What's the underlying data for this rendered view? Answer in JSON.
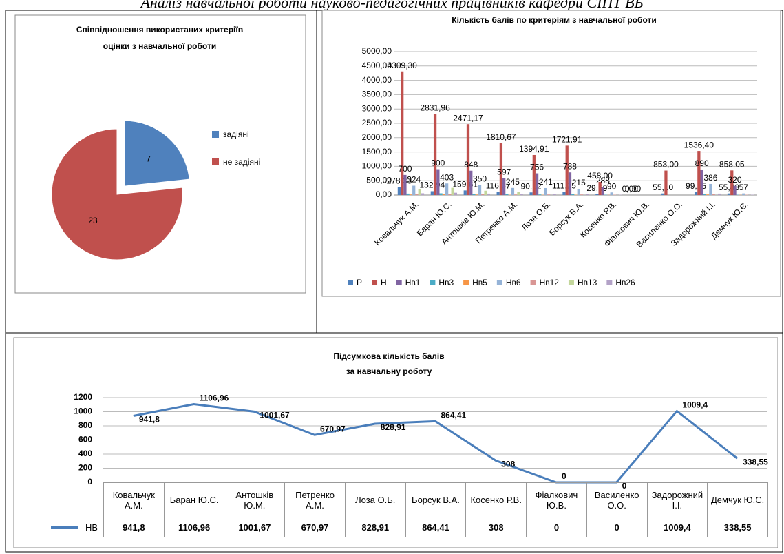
{
  "header": {
    "title": "Аналіз навчальної роботи науково-педагогічних працівників кафедри СІПТ ВБ"
  },
  "chart_data": [
    {
      "type": "pie",
      "title": [
        "Співвідношення використаних критеріїв",
        "оцінки з навчальної роботи"
      ],
      "categories": [
        "задіяні",
        "не задіяні"
      ],
      "values": [
        7,
        23
      ],
      "colors": [
        "#4f81bd",
        "#c0504d"
      ],
      "legend": "right"
    },
    {
      "type": "bar",
      "title": "Кількість балів по критеріям з навчальної роботи",
      "categories": [
        "Ковальчук А.М.",
        "Баран Ю.С.",
        "Антошків Ю.М.",
        "Петренко А.М.",
        "Лоза О.Б.",
        "Борсук В.А.",
        "Косенко Р.В.",
        "Фіалкович Ю.В.",
        "Василенко О.О.",
        "Задорожний І.І.",
        "Демчук Ю.Є."
      ],
      "ylim": [
        0,
        5000
      ],
      "yticks": [
        {
          "value": 0,
          "label": "0,00"
        },
        {
          "value": 500,
          "label": "500,00"
        },
        {
          "value": 1000,
          "label": "1000,00"
        },
        {
          "value": 1500,
          "label": "1500,00"
        },
        {
          "value": 2000,
          "label": "2000,00"
        },
        {
          "value": 2500,
          "label": "2500,00"
        },
        {
          "value": 3000,
          "label": "3000,00"
        },
        {
          "value": 3500,
          "label": "3500,00"
        },
        {
          "value": 4000,
          "label": "4000,00"
        },
        {
          "value": 4500,
          "label": "4500,00"
        },
        {
          "value": 5000,
          "label": "5000,00"
        }
      ],
      "grid": true,
      "legend": "bottom",
      "series": [
        {
          "name": "Р",
          "color": "#4f81bd",
          "values": [
            278.33,
            132.94,
            159.61,
            116.37,
            90.12,
            111.25,
            29.59,
            0,
            55.1,
            99.25,
            55.43
          ],
          "value_labels": [
            "278,33",
            "132,94",
            "159,61",
            "116,37",
            "90,12",
            "111,25",
            "29,59",
            "0,00",
            "55,10",
            "99,25",
            "55,43"
          ]
        },
        {
          "name": "Н",
          "color": "#c0504d",
          "values": [
            4309.3,
            2831.96,
            2471.17,
            1810.67,
            1394.91,
            1721.91,
            458,
            0,
            853,
            1536.4,
            858.05
          ],
          "value_labels": [
            "4309,30",
            "2831,96",
            "2471,17",
            "1810,67",
            "1394,91",
            "1721,91",
            "458,00",
            "0,00",
            "853,00",
            "1536,40",
            "858,05"
          ]
        },
        {
          "name": "Нв1",
          "color": "#8064a2",
          "values": [
            700,
            900,
            848,
            597,
            756,
            788,
            288,
            0,
            0,
            890,
            320
          ],
          "value_labels": [
            "700",
            "900",
            "848",
            "597",
            "756",
            "788",
            "288",
            null,
            null,
            "890",
            "320"
          ]
        },
        {
          "name": "Нв3",
          "color": "#4bacc6",
          "values": [
            50,
            60,
            40,
            30,
            20,
            30,
            10,
            0,
            0,
            40,
            10
          ]
        },
        {
          "name": "Нв5",
          "color": "#f79646",
          "values": [
            20,
            30,
            20,
            10,
            10,
            10,
            5,
            0,
            0,
            20,
            5
          ]
        },
        {
          "name": "Нв6",
          "color": "#95b3d7",
          "values": [
            324,
            403,
            350,
            245,
            241,
            215,
            90,
            0,
            0,
            386,
            57
          ],
          "value_labels": [
            "324",
            "403",
            "350",
            "245",
            "241",
            "215",
            "90",
            null,
            null,
            "386",
            "57"
          ]
        },
        {
          "name": "Нв12",
          "color": "#d99694",
          "values": [
            30,
            40,
            30,
            20,
            20,
            20,
            10,
            0,
            0,
            30,
            10
          ]
        },
        {
          "name": "Нв13",
          "color": "#c3d69b",
          "values": [
            200,
            250,
            150,
            100,
            0,
            0,
            0,
            0,
            0,
            0,
            0
          ]
        },
        {
          "name": "Нв26",
          "color": "#b3a2c7",
          "values": [
            60,
            80,
            50,
            40,
            30,
            30,
            10,
            0,
            0,
            50,
            10
          ]
        }
      ]
    },
    {
      "type": "line",
      "title": [
        "Підсумкова кількість балів",
        "за навчальну роботу"
      ],
      "categories": [
        "Ковальчук А.М.",
        "Баран Ю.С.",
        "Антошків Ю.М.",
        "Петренко А.М.",
        "Лоза О.Б.",
        "Борсук В.А.",
        "Косенко Р.В.",
        "Фіалкович Ю.В.",
        "Василенко О.О.",
        "Задорожний І.І.",
        "Демчук Ю.Є."
      ],
      "ylim": [
        0,
        1200
      ],
      "yticks": [
        0,
        200,
        400,
        600,
        800,
        1000,
        1200
      ],
      "grid": true,
      "series": [
        {
          "name": "НВ",
          "color": "#4a7ebb",
          "values": [
            941.8,
            1106.96,
            1001.67,
            670.97,
            828.91,
            864.41,
            308,
            0,
            0,
            1009.4,
            338.55
          ],
          "value_labels": [
            "941,8",
            "1106,96",
            "1001,67",
            "670,97",
            "828,91",
            "864,41",
            "308",
            "0",
            "0",
            "1009,4",
            "338,55"
          ]
        }
      ]
    }
  ]
}
